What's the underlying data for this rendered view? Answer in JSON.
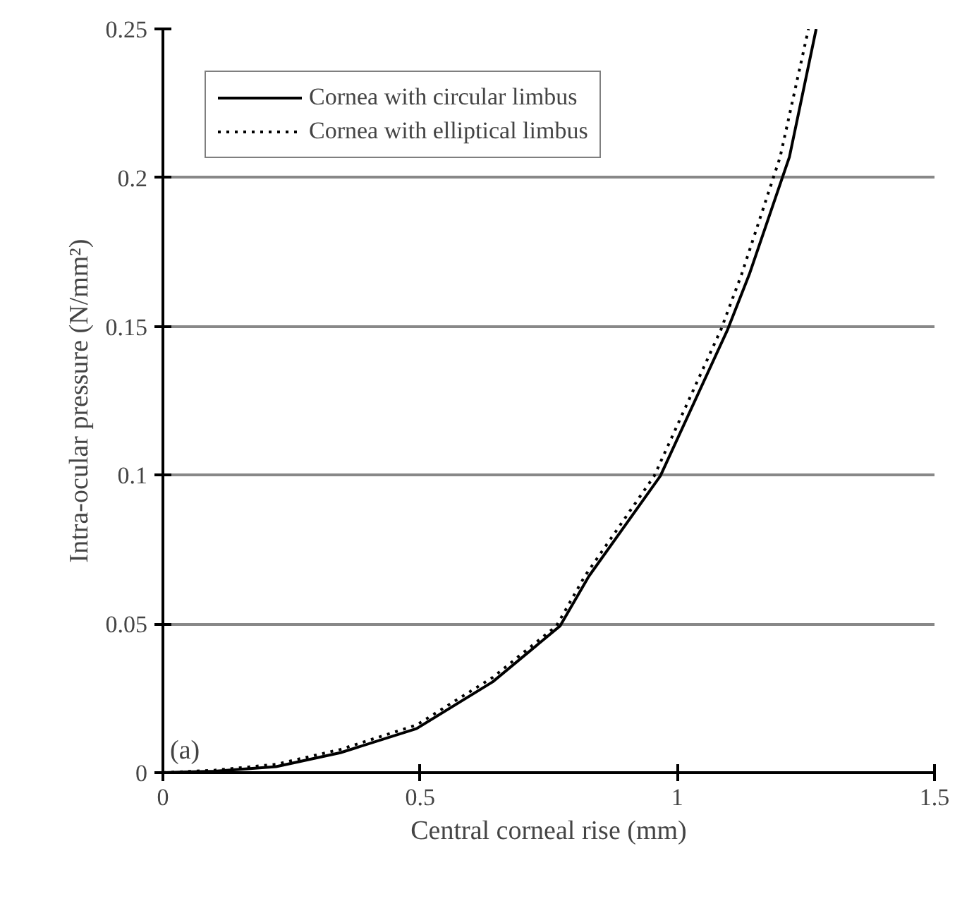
{
  "chart_data": {
    "type": "line",
    "xlabel": "Central corneal rise (mm)",
    "ylabel": "Intra-ocular pressure (N/mm²)",
    "annotations": [
      "(a)"
    ],
    "xlim": [
      0,
      1.5
    ],
    "xticks": [
      0,
      0.5,
      1,
      1.5
    ],
    "ylim": [
      0,
      0.25
    ],
    "yticks": [
      0,
      0.05,
      0.1,
      0.15,
      0.2,
      0.25
    ],
    "grid": "y",
    "legend": "top left",
    "series": [
      {
        "name": "Cornea with circular limbus",
        "color": "#000000",
        "line_style": "solid",
        "x": [
          0,
          0.1,
          0.22,
          0.345,
          0.493,
          0.641,
          0.772,
          0.828,
          0.967,
          1.098,
          1.14,
          1.218,
          1.27
        ],
        "values": [
          0,
          0.0005,
          0.002,
          0.0067,
          0.0148,
          0.0305,
          0.0493,
          0.066,
          0.0997,
          0.149,
          0.1675,
          0.207,
          0.25
        ]
      },
      {
        "name": "Cornea with elliptical limbus",
        "color": "#000000",
        "line_style": "dotted",
        "x": [
          0,
          0.1,
          0.22,
          0.345,
          0.493,
          0.641,
          0.765,
          0.82,
          0.955,
          1.085,
          1.125,
          1.2,
          1.255
        ],
        "values": [
          0,
          0.0008,
          0.0028,
          0.0078,
          0.016,
          0.032,
          0.0493,
          0.066,
          0.0997,
          0.149,
          0.1675,
          0.207,
          0.25
        ]
      }
    ]
  }
}
